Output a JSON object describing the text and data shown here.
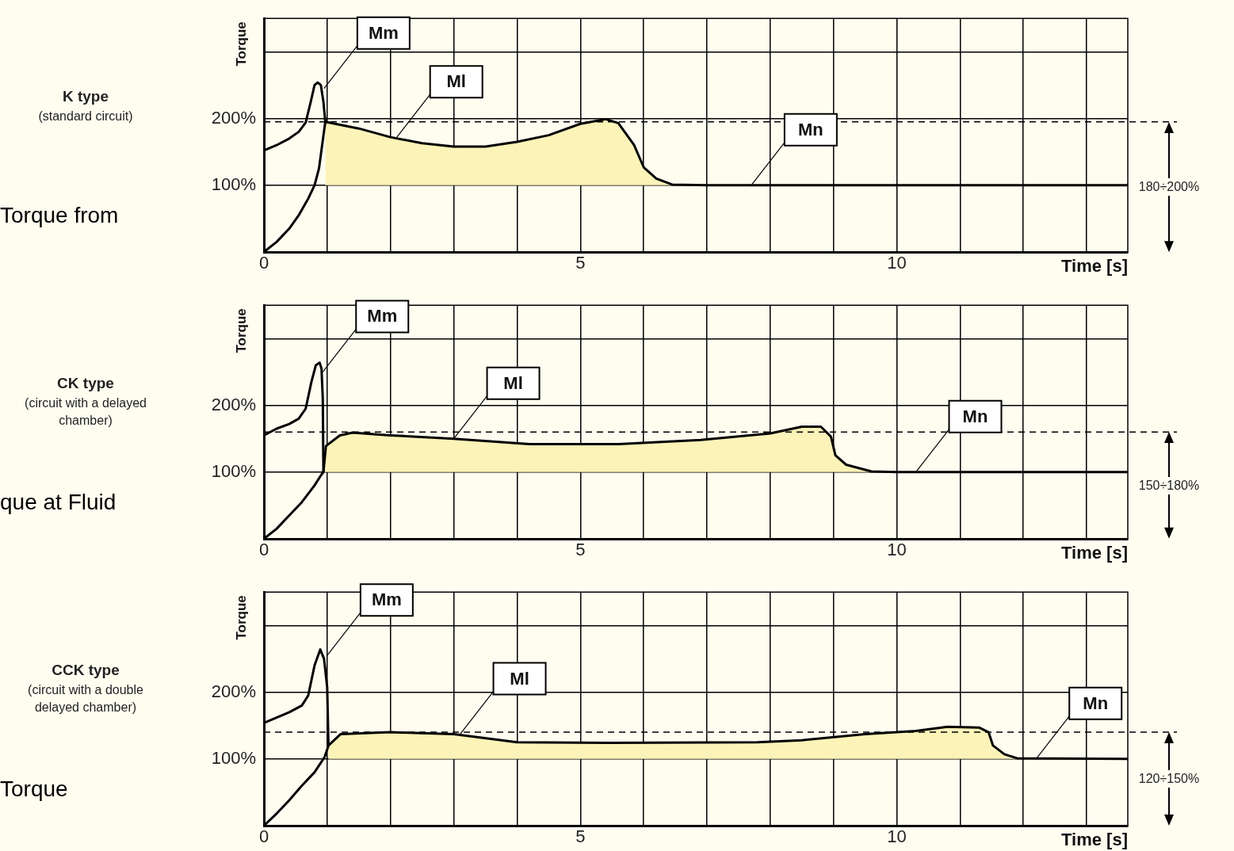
{
  "chart_data": [
    {
      "type": "line",
      "ylabel": "Torque",
      "xlabel": "Time [s]",
      "xlim": [
        0,
        13.65
      ],
      "ylim": [
        0,
        350
      ],
      "xticks": [
        0,
        {
          "value": 1,
          "label": null
        },
        {
          "value": 2,
          "label": null
        },
        {
          "value": 3,
          "label": null
        },
        {
          "value": 4,
          "label": null
        },
        5,
        {
          "value": 6,
          "label": null
        },
        {
          "value": 7,
          "label": null
        },
        {
          "value": 8,
          "label": null
        },
        {
          "value": 9,
          "label": null
        },
        10,
        {
          "value": 11,
          "label": null
        },
        {
          "value": 12,
          "label": null
        },
        {
          "value": 13,
          "label": null
        }
      ],
      "yticks": [
        {
          "value": 100,
          "label": "100%"
        },
        {
          "value": 200,
          "label": "200%"
        },
        {
          "value": 300,
          "label": null
        }
      ],
      "grid": true,
      "marker": "none",
      "line_style": "solid",
      "series": [
        {
          "type": "line",
          "color": "#000000",
          "x": [
            0,
            0.2,
            0.4,
            0.55,
            0.66,
            0.74,
            0.8,
            0.85,
            0.9,
            0.94,
            0.97,
            0.92,
            0.87,
            0.8,
            0.7,
            0.55,
            0.4,
            0.2,
            0
          ],
          "values": [
            152,
            160,
            170,
            180,
            194,
            225,
            250,
            254,
            250,
            225,
            195,
            160,
            125,
            100,
            80,
            55,
            35,
            15,
            0
          ]
        },
        {
          "type": "area",
          "color": "#fcf3b8",
          "x": [
            0.97,
            1.5,
            2,
            2.5,
            3,
            3.5,
            4,
            4.5,
            5,
            5.4,
            5.6,
            5.85,
            6,
            6.2,
            6.45,
            7,
            13.65
          ],
          "values": [
            195,
            185,
            172,
            163,
            158,
            158,
            165,
            175,
            192,
            199,
            193,
            160,
            127,
            110,
            101,
            100,
            100
          ]
        }
      ],
      "ref_lines": [
        {
          "axis": "y",
          "value": 195,
          "label": "180÷200%",
          "color": "#000000",
          "line_style": "dashed"
        }
      ],
      "annotations": [
        "K type",
        "(standard circuit)",
        "Torque from",
        {
          "text": "Mm",
          "x": 0.95,
          "y": 245
        },
        {
          "text": "Ml",
          "x": 2.1,
          "y": 172
        },
        {
          "text": "Mn",
          "x": 7.7,
          "y": 100
        }
      ]
    },
    {
      "type": "line",
      "ylabel": "Torque",
      "xlabel": "Time [s]",
      "xlim": [
        0,
        13.65
      ],
      "ylim": [
        0,
        350
      ],
      "xticks": [
        0,
        {
          "value": 1,
          "label": null
        },
        {
          "value": 2,
          "label": null
        },
        {
          "value": 3,
          "label": null
        },
        {
          "value": 4,
          "label": null
        },
        5,
        {
          "value": 6,
          "label": null
        },
        {
          "value": 7,
          "label": null
        },
        {
          "value": 8,
          "label": null
        },
        {
          "value": 9,
          "label": null
        },
        10,
        {
          "value": 11,
          "label": null
        },
        {
          "value": 12,
          "label": null
        },
        {
          "value": 13,
          "label": null
        }
      ],
      "yticks": [
        {
          "value": 100,
          "label": "100%"
        },
        {
          "value": 200,
          "label": "200%"
        },
        {
          "value": 300,
          "label": null
        }
      ],
      "grid": true,
      "marker": "none",
      "line_style": "solid",
      "series": [
        {
          "type": "line",
          "color": "#000000",
          "x": [
            0,
            0.2,
            0.4,
            0.55,
            0.66,
            0.75,
            0.82,
            0.88,
            0.91,
            0.93,
            0.94,
            0.9,
            0.8,
            0.6,
            0.4,
            0.2,
            0
          ],
          "values": [
            155,
            165,
            172,
            180,
            195,
            235,
            260,
            264,
            255,
            210,
            100,
            95,
            80,
            55,
            35,
            15,
            0
          ]
        },
        {
          "type": "area",
          "color": "#fcf3b8",
          "x": [
            0.94,
            0.98,
            1.2,
            1.4,
            2,
            3,
            4.2,
            5.6,
            6.9,
            8,
            8.5,
            8.8,
            8.96,
            9.03,
            9.2,
            9.6,
            10,
            13.65
          ],
          "values": [
            100,
            139,
            155,
            159,
            155,
            150,
            142,
            142,
            148,
            158,
            168,
            168,
            153,
            125,
            111,
            101,
            100,
            100
          ]
        }
      ],
      "ref_lines": [
        {
          "axis": "y",
          "value": 160,
          "label": "150÷180%",
          "color": "#000000",
          "line_style": "dashed"
        }
      ],
      "annotations": [
        "CK type",
        "(circuit with a delayed chamber)",
        "que at Fluid",
        {
          "text": "Mm",
          "x": 0.93,
          "y": 250
        },
        {
          "text": "Ml",
          "x": 3,
          "y": 150
        },
        {
          "text": "Mn",
          "x": 10.3,
          "y": 100
        }
      ]
    },
    {
      "type": "line",
      "ylabel": "Torque",
      "xlabel": "Time [s]",
      "xlim": [
        0,
        13.65
      ],
      "ylim": [
        0,
        350
      ],
      "xticks": [
        0,
        {
          "value": 1,
          "label": null
        },
        {
          "value": 2,
          "label": null
        },
        {
          "value": 3,
          "label": null
        },
        {
          "value": 4,
          "label": null
        },
        5,
        {
          "value": 6,
          "label": null
        },
        {
          "value": 7,
          "label": null
        },
        {
          "value": 8,
          "label": null
        },
        {
          "value": 9,
          "label": null
        },
        10,
        {
          "value": 11,
          "label": null
        },
        {
          "value": 12,
          "label": null
        },
        {
          "value": 13,
          "label": null
        }
      ],
      "yticks": [
        {
          "value": 100,
          "label": "100%"
        },
        {
          "value": 200,
          "label": "200%"
        },
        {
          "value": 300,
          "label": null
        }
      ],
      "grid": true,
      "marker": "none",
      "line_style": "solid",
      "series": [
        {
          "type": "line",
          "color": "#000000",
          "x": [
            0,
            0.2,
            0.4,
            0.6,
            0.7,
            0.8,
            0.89,
            0.95,
            1,
            1.02,
            0.96,
            0.8,
            0.6,
            0.4,
            0.2,
            0
          ],
          "values": [
            154,
            162,
            170,
            180,
            195,
            240,
            264,
            250,
            207,
            120,
            103,
            80,
            60,
            38,
            18,
            0
          ]
        },
        {
          "type": "area",
          "color": "#fcf3b8",
          "x": [
            1.02,
            1.21,
            2,
            3,
            4,
            5.5,
            7.8,
            8.5,
            9.5,
            10.3,
            10.8,
            11.3,
            11.45,
            11.52,
            11.7,
            11.9,
            13.65
          ],
          "values": [
            120,
            137,
            140,
            137,
            125,
            124,
            125,
            128,
            137,
            142,
            148,
            147,
            140,
            120,
            107,
            101,
            100
          ]
        }
      ],
      "ref_lines": [
        {
          "axis": "y",
          "value": 140,
          "label": "120÷150%",
          "color": "#000000",
          "line_style": "dashed"
        }
      ],
      "annotations": [
        "CCK type",
        "(circuit with a double delayed chamber)",
        "Torque",
        {
          "text": "Mm",
          "x": 1,
          "y": 255
        },
        {
          "text": "Ml",
          "x": 3.1,
          "y": 137
        },
        {
          "text": "Mn",
          "x": 12.2,
          "y": 100
        }
      ]
    }
  ]
}
